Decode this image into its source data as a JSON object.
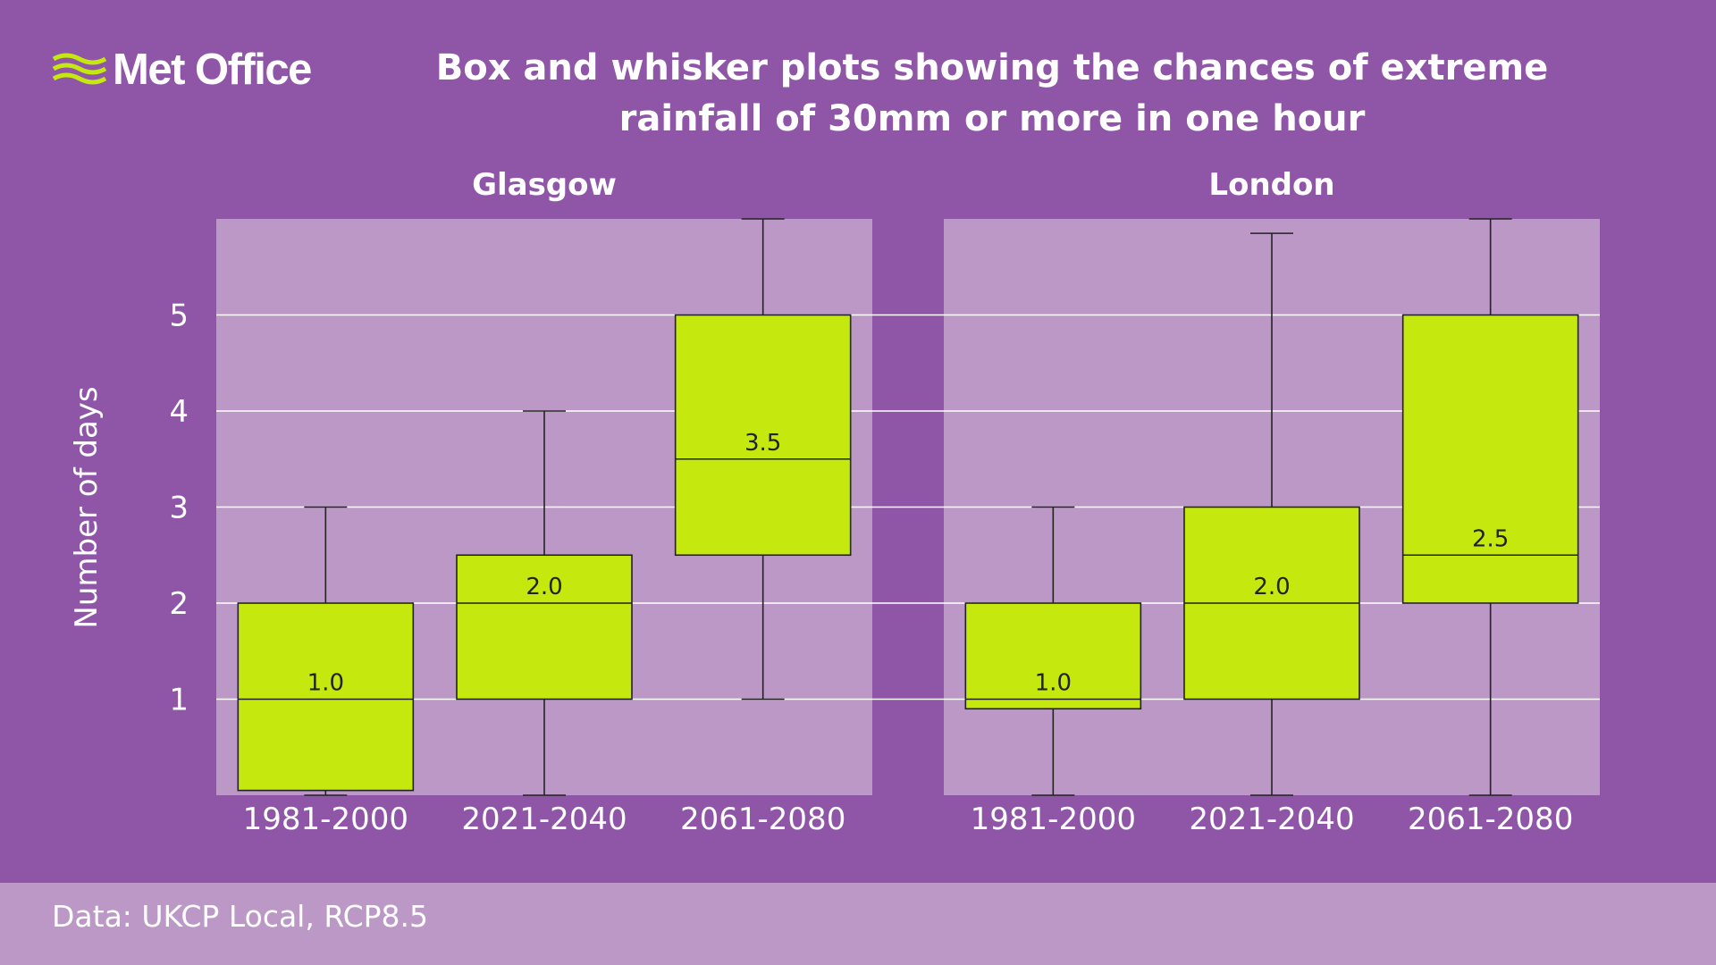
{
  "header": {
    "logo_text": "Met Office",
    "title_line1": "Box and whisker plots showing the chances of extreme",
    "title_line2": "rainfall of 30mm or more in one hour"
  },
  "footer": {
    "source": "Data: UKCP Local, RCP8.5"
  },
  "colors": {
    "background": "#8f56a8",
    "panel": "#bb98c5",
    "box": "#c5e90e",
    "logo_accent": "#c5e90e"
  },
  "chart_data": {
    "type": "box",
    "ylabel": "Number of days",
    "ylim": [
      0,
      6
    ],
    "yticks": [
      1,
      2,
      3,
      4,
      5
    ],
    "grid": true,
    "panels": [
      {
        "title": "Glasgow",
        "boxes": [
          {
            "category": "1981-2000",
            "min": 0,
            "q1": 0.05,
            "median": 1.0,
            "q3": 2.0,
            "max": 3.0,
            "label": "1.0"
          },
          {
            "category": "2021-2040",
            "min": 0,
            "q1": 1.0,
            "median": 2.0,
            "q3": 2.5,
            "max": 4.0,
            "label": "2.0"
          },
          {
            "category": "2061-2080",
            "min": 1.0,
            "q1": 2.5,
            "median": 3.5,
            "q3": 5.0,
            "max": 6.0,
            "label": "3.5"
          }
        ]
      },
      {
        "title": "London",
        "boxes": [
          {
            "category": "1981-2000",
            "min": 0,
            "q1": 0.9,
            "median": 1.0,
            "q3": 2.0,
            "max": 3.0,
            "label": "1.0"
          },
          {
            "category": "2021-2040",
            "min": 0,
            "q1": 1.0,
            "median": 2.0,
            "q3": 3.0,
            "max": 5.85,
            "label": "2.0"
          },
          {
            "category": "2061-2080",
            "min": 0,
            "q1": 2.0,
            "median": 2.5,
            "q3": 5.0,
            "max": 6.0,
            "label": "2.5"
          }
        ]
      }
    ]
  }
}
